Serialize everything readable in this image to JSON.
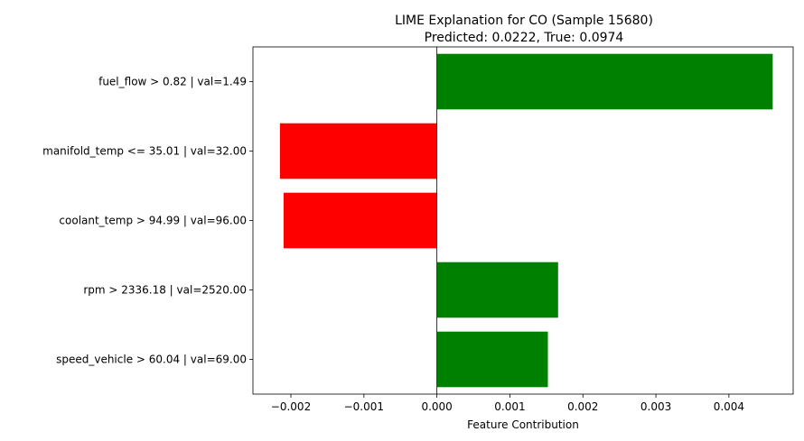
{
  "chart_data": {
    "type": "bar",
    "orientation": "horizontal",
    "title": "LIME Explanation for CO (Sample 15680)",
    "subtitle": "Predicted: 0.0222, True: 0.0974",
    "xlabel": "Feature Contribution",
    "ylabel": "",
    "xlim": [
      -0.00252,
      0.00488
    ],
    "xticks": [
      -0.002,
      -0.001,
      0.0,
      0.001,
      0.002,
      0.003,
      0.004
    ],
    "xtick_labels": [
      "−0.002",
      "−0.001",
      "0.000",
      "0.001",
      "0.002",
      "0.003",
      "0.004"
    ],
    "categories": [
      "fuel_flow > 0.82 | val=1.49",
      "manifold_temp <= 35.01 | val=32.00",
      "coolant_temp > 94.99 | val=96.00",
      "rpm > 2336.18 | val=2520.00",
      "speed_vehicle > 60.04 | val=69.00"
    ],
    "values": [
      0.0046,
      -0.00215,
      -0.0021,
      0.00166,
      0.00152
    ],
    "positive_color": "#008000",
    "negative_color": "#ff0000",
    "grid": false,
    "legend": "none"
  }
}
